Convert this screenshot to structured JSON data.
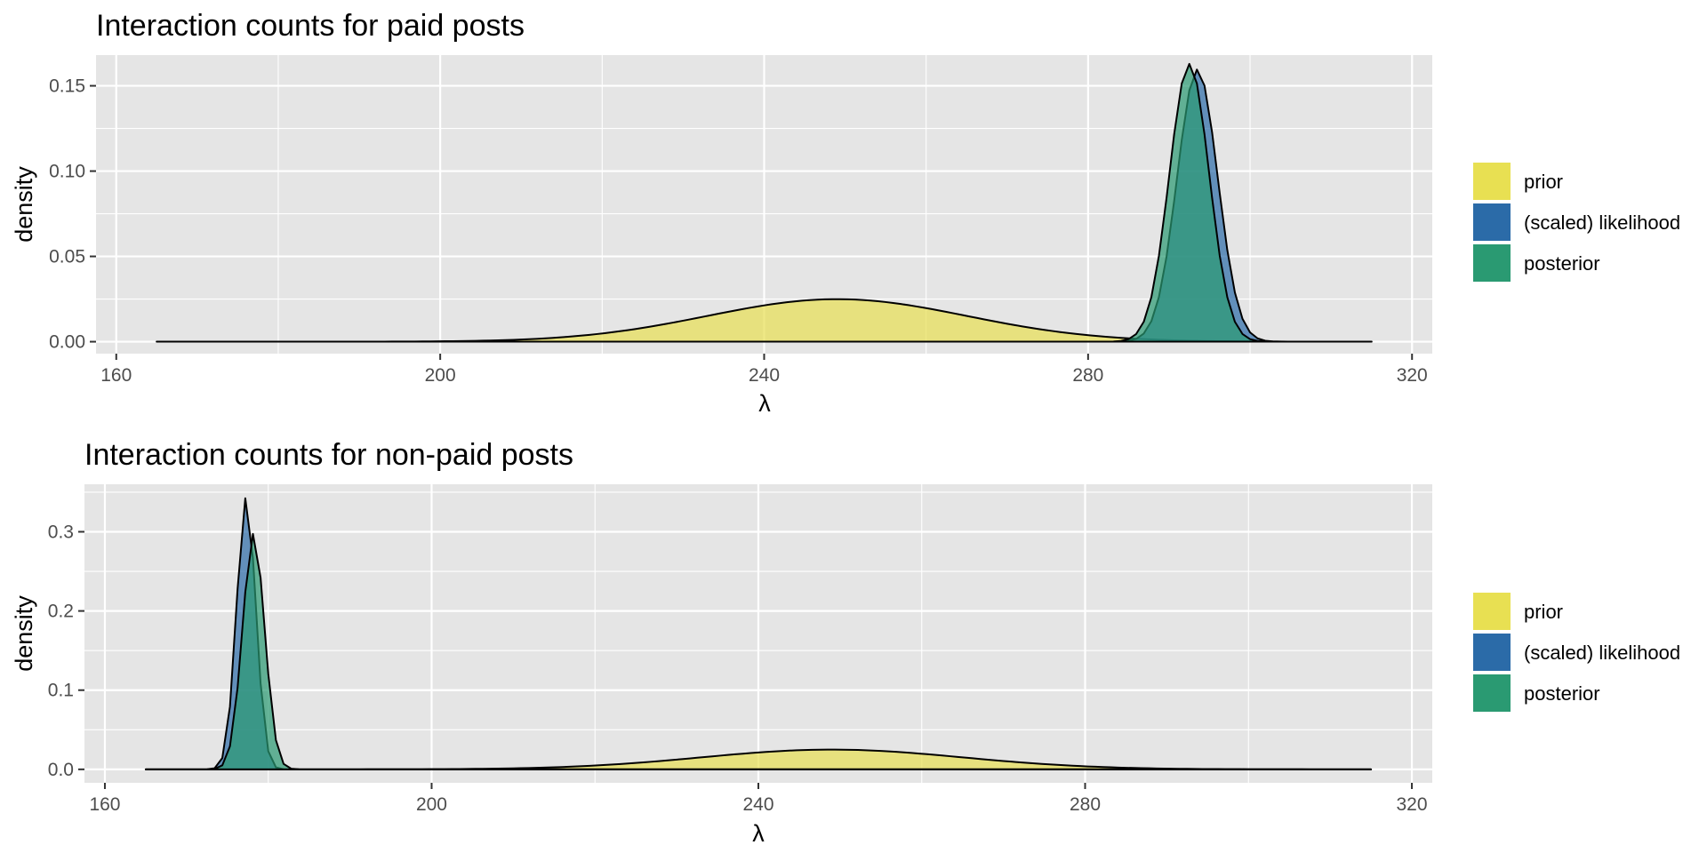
{
  "colors": {
    "panel_bg": "#e5e5e5",
    "grid": "#ffffff",
    "prior": "#e8e052",
    "likelihood": "#2b6ba8",
    "posterior": "#2a9a72",
    "outline": "#000000"
  },
  "legend": {
    "items": [
      {
        "label": "prior",
        "color": "#e8e052"
      },
      {
        "label": "(scaled) likelihood",
        "color": "#2b6ba8"
      },
      {
        "label": "posterior",
        "color": "#2a9a72"
      }
    ]
  },
  "chart_data": [
    {
      "type": "area",
      "title": "Interaction counts for paid posts",
      "xlabel": "λ",
      "ylabel": "density",
      "xlim": [
        157.5,
        322.5
      ],
      "ylim": [
        -0.007,
        0.168
      ],
      "x_ticks": [
        160,
        200,
        240,
        280,
        320
      ],
      "x_tick_labels": [
        "160",
        "200",
        "240",
        "280",
        "320"
      ],
      "y_ticks": [
        0,
        0.05,
        0.1,
        0.15
      ],
      "y_tick_labels": [
        "0.00",
        "0.05",
        "0.10",
        "0.15"
      ],
      "grid": true,
      "legend_position": "right",
      "series": [
        {
          "name": "prior",
          "color": "#e8e052",
          "dist": "normal",
          "mean": 249,
          "sd": 16,
          "x_range": [
            165,
            315
          ]
        },
        {
          "name": "(scaled) likelihood",
          "color": "#2b6ba8",
          "dist": "normal",
          "mean": 293.5,
          "sd": 2.5,
          "x_range": [
            165,
            315
          ]
        },
        {
          "name": "posterior",
          "color": "#2a9a72",
          "dist": "normal",
          "mean": 292.5,
          "sd": 2.45,
          "x_range": [
            165,
            315
          ]
        }
      ]
    },
    {
      "type": "area",
      "title": "Interaction counts for non-paid posts",
      "xlabel": "λ",
      "ylabel": "density",
      "xlim": [
        157.5,
        322.5
      ],
      "ylim": [
        -0.017,
        0.36
      ],
      "x_ticks": [
        160,
        200,
        240,
        280,
        320
      ],
      "x_tick_labels": [
        "160",
        "200",
        "240",
        "280",
        "320"
      ],
      "y_ticks": [
        0,
        0.1,
        0.2,
        0.3
      ],
      "y_tick_labels": [
        "0.0",
        "0.1",
        "0.2",
        "0.3"
      ],
      "grid": true,
      "legend_position": "right",
      "series": [
        {
          "name": "prior",
          "color": "#e8e052",
          "dist": "normal",
          "mean": 249,
          "sd": 16,
          "x_range": [
            165,
            315
          ]
        },
        {
          "name": "(scaled) likelihood",
          "color": "#2b6ba8",
          "dist": "normal",
          "mean": 177.3,
          "sd": 1.16,
          "x_range": [
            165,
            315
          ]
        },
        {
          "name": "posterior",
          "color": "#2a9a72",
          "dist": "normal",
          "mean": 178.2,
          "sd": 1.34,
          "x_range": [
            165,
            315
          ]
        }
      ]
    }
  ]
}
